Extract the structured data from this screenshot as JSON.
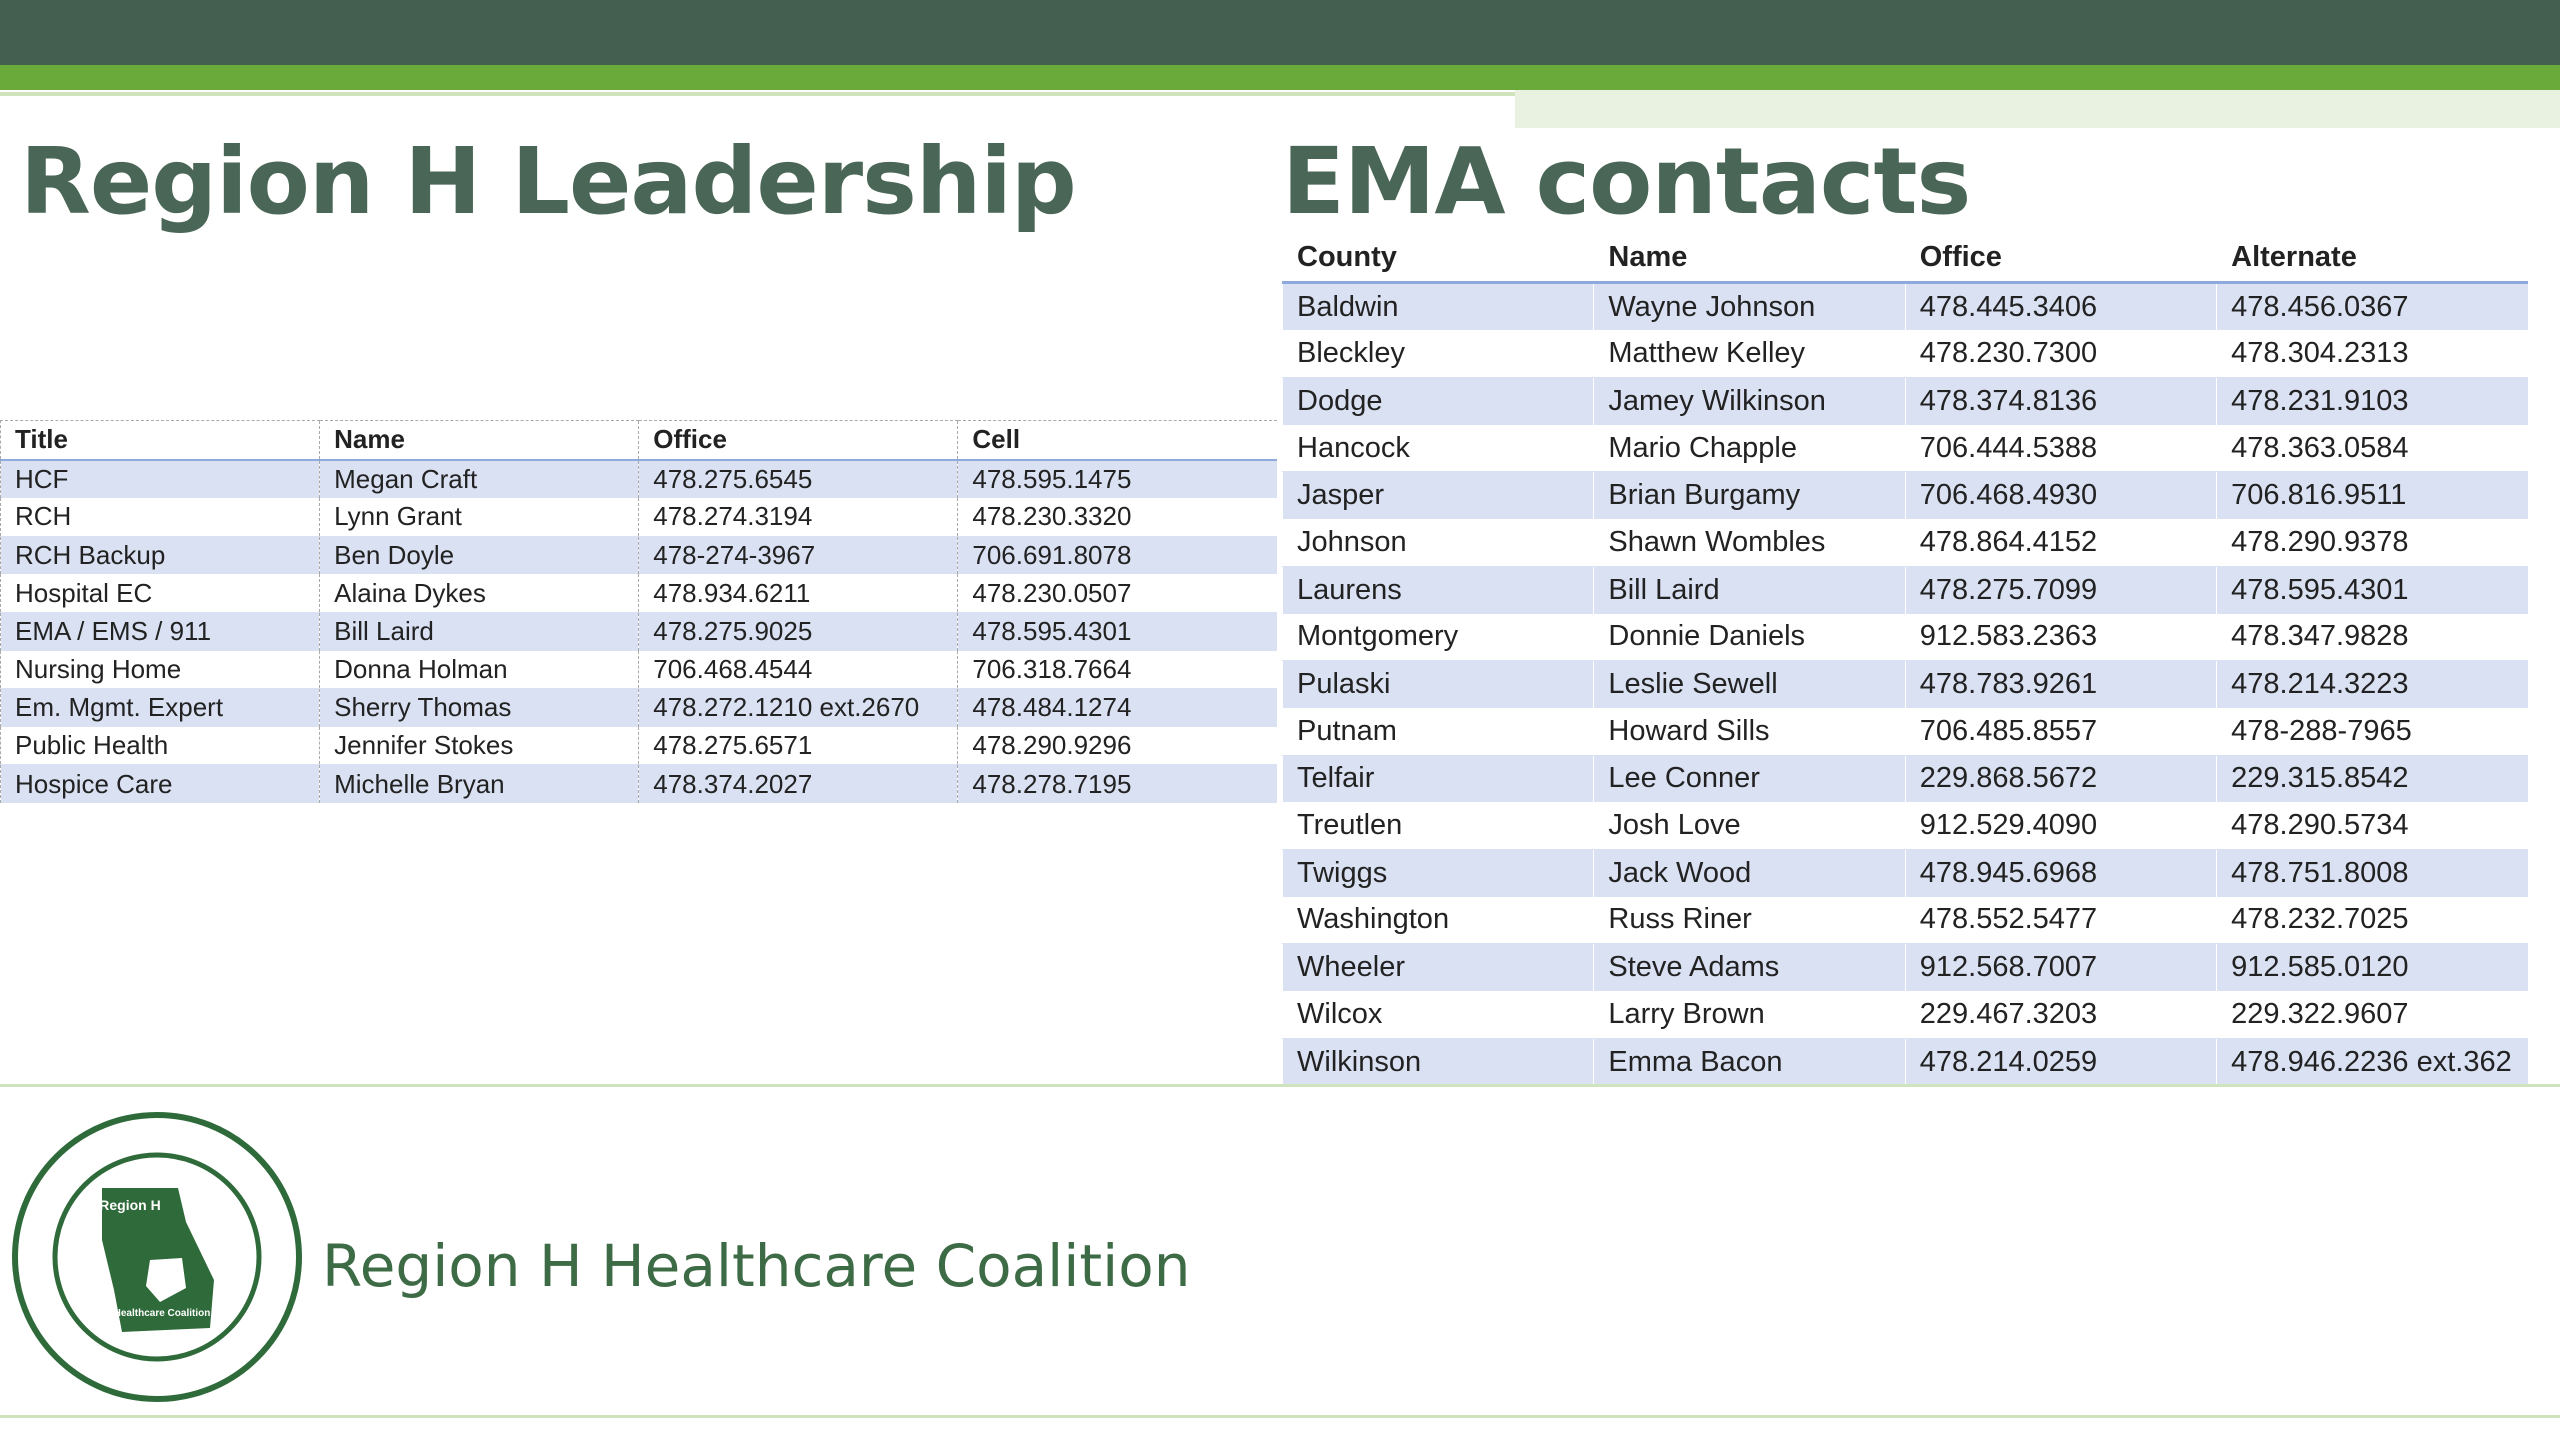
{
  "header": {
    "left_title": "Region H Leadership",
    "right_title": "EMA contacts"
  },
  "leadership": {
    "columns": [
      "Title",
      "Name",
      "Office",
      "Cell"
    ],
    "rows": [
      [
        "HCF",
        "Megan Craft",
        "478.275.6545",
        "478.595.1475"
      ],
      [
        "RCH",
        "Lynn Grant",
        "478.274.3194",
        "478.230.3320"
      ],
      [
        "RCH Backup",
        "Ben Doyle",
        "478-274-3967",
        "706.691.8078"
      ],
      [
        "Hospital EC",
        "Alaina Dykes",
        "478.934.6211",
        "478.230.0507"
      ],
      [
        "EMA / EMS / 911",
        "Bill Laird",
        "478.275.9025",
        "478.595.4301"
      ],
      [
        "Nursing Home",
        "Donna Holman",
        "706.468.4544",
        "706.318.7664"
      ],
      [
        "Em. Mgmt. Expert",
        "Sherry Thomas",
        "478.272.1210 ext.2670",
        "478.484.1274"
      ],
      [
        "Public Health",
        "Jennifer Stokes",
        "478.275.6571",
        "478.290.9296"
      ],
      [
        "Hospice Care",
        "Michelle Bryan",
        "478.374.2027",
        "478.278.7195"
      ]
    ]
  },
  "ema": {
    "columns": [
      "County",
      "Name",
      "Office",
      "Alternate"
    ],
    "rows": [
      [
        "Baldwin",
        "Wayne Johnson",
        "478.445.3406",
        "478.456.0367"
      ],
      [
        "Bleckley",
        "Matthew Kelley",
        "478.230.7300",
        "478.304.2313"
      ],
      [
        "Dodge",
        "Jamey Wilkinson",
        "478.374.8136",
        "478.231.9103"
      ],
      [
        "Hancock",
        "Mario Chapple",
        "706.444.5388",
        "478.363.0584"
      ],
      [
        "Jasper",
        "Brian Burgamy",
        "706.468.4930",
        "706.816.9511"
      ],
      [
        "Johnson",
        "Shawn Wombles",
        "478.864.4152",
        "478.290.9378"
      ],
      [
        "Laurens",
        "Bill Laird",
        "478.275.7099",
        "478.595.4301"
      ],
      [
        "Montgomery",
        "Donnie Daniels",
        "912.583.2363",
        "478.347.9828"
      ],
      [
        "Pulaski",
        "Leslie Sewell",
        "478.783.9261",
        "478.214.3223"
      ],
      [
        "Putnam",
        "Howard Sills",
        "706.485.8557",
        "478-288-7965"
      ],
      [
        "Telfair",
        "Lee Conner",
        "229.868.5672",
        "229.315.8542"
      ],
      [
        "Treutlen",
        "Josh Love",
        "912.529.4090",
        "478.290.5734"
      ],
      [
        "Twiggs",
        "Jack Wood",
        "478.945.6968",
        "478.751.8008"
      ],
      [
        "Washington",
        "Russ Riner",
        "478.552.5477",
        "478.232.7025"
      ],
      [
        "Wheeler",
        "Steve Adams",
        "912.568.7007",
        "912.585.0120"
      ],
      [
        "Wilcox",
        "Larry Brown",
        "229.467.3203",
        "229.322.9607"
      ],
      [
        "Wilkinson",
        "Emma Bacon",
        "478.214.0259",
        "478.946.2236 ext.362"
      ]
    ]
  },
  "logo": {
    "top_text": "Region H",
    "bottom_text": "Healthcare Coalition"
  },
  "footer": {
    "text": "Region H Healthcare Coalition"
  }
}
